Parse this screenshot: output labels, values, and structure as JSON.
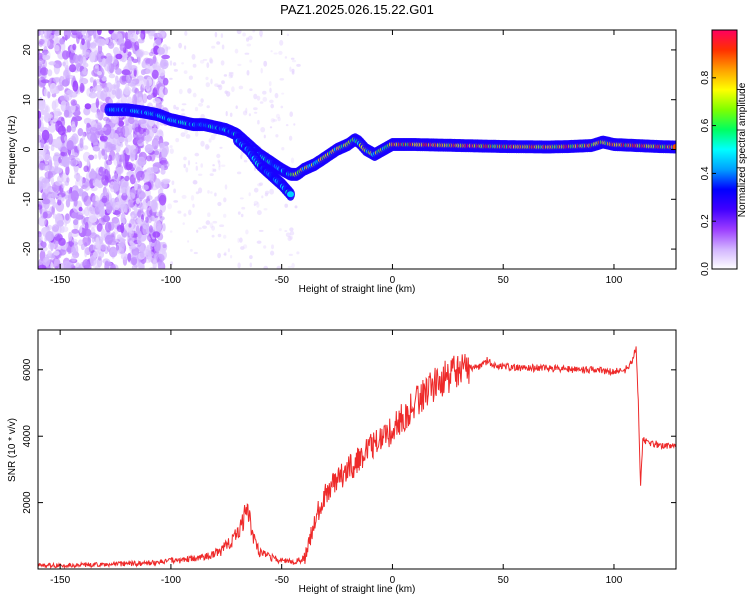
{
  "title": "PAZ1.2025.026.15.22.G01",
  "chart_data": [
    {
      "type": "heatmap",
      "id": "spectrogram",
      "xlabel": "Height of straight line (km)",
      "ylabel": "Frequency (Hz)",
      "xlim": [
        -160,
        128
      ],
      "ylim": [
        -24,
        24
      ],
      "xticks": [
        -150,
        -100,
        -50,
        0,
        50,
        100
      ],
      "yticks": [
        20,
        10,
        0,
        -10,
        -20
      ],
      "grid": false,
      "ridge": {
        "x": [
          -128,
          -120,
          -112,
          -106,
          -100,
          -95,
          -90,
          -85,
          -80,
          -75,
          -70,
          -65,
          -60,
          -55,
          -50,
          -46,
          -43,
          -40,
          -35,
          -30,
          -25,
          -20,
          -17,
          -15,
          -12,
          -8,
          -4,
          0,
          10,
          30,
          50,
          70,
          80,
          90,
          95,
          100,
          110,
          120,
          128
        ],
        "y": [
          8,
          8,
          7.5,
          7,
          6,
          5.5,
          5,
          5,
          4.5,
          4,
          3,
          1,
          -1,
          -2.5,
          -4,
          -5,
          -5,
          -4,
          -3,
          -1.5,
          0,
          1,
          2,
          1.5,
          0,
          -1,
          0,
          1,
          1,
          0.8,
          0.6,
          0.5,
          0.6,
          0.8,
          1.5,
          1,
          0.8,
          0.6,
          0.5
        ]
      },
      "branch": {
        "x": [
          -70,
          -65,
          -60,
          -55,
          -50,
          -46
        ],
        "y": [
          2,
          0,
          -3,
          -5,
          -7,
          -9
        ]
      },
      "colorbar": {
        "label": "Normalized spectral amplitude",
        "ticks": [
          "0.0",
          "0.2",
          "0.4",
          "0.6",
          "0.8"
        ],
        "range": [
          0,
          1
        ],
        "colors": [
          "#ffffff",
          "#d2b4ff",
          "#9b3cff",
          "#4000ff",
          "#0000ff",
          "#00a0ff",
          "#00ffff",
          "#00ff60",
          "#7fff00",
          "#ffff00",
          "#ffa000",
          "#ff3000",
          "#ff0060"
        ]
      }
    },
    {
      "type": "line",
      "id": "snr",
      "xlabel": "Height of straight line (km)",
      "ylabel": "SNR (10 * v/v)",
      "xlim": [
        -160,
        128
      ],
      "ylim": [
        0,
        7200
      ],
      "xticks": [
        -150,
        -100,
        -50,
        0,
        50,
        100
      ],
      "yticks": [
        2000,
        4000,
        6000
      ],
      "grid": false,
      "line_color": "#ee2a2a",
      "series": [
        {
          "x": [
            -160,
            -140,
            -120,
            -105,
            -100,
            -90,
            -85,
            -78,
            -72,
            -68,
            -66,
            -64,
            -62,
            -60,
            -55,
            -50,
            -45,
            -40,
            -38,
            -35,
            -32,
            -30,
            -25,
            -20,
            -15,
            -10,
            -5,
            0,
            5,
            10,
            15,
            20,
            25,
            30,
            35,
            40,
            43,
            45,
            50,
            60,
            70,
            80,
            90,
            100,
            105,
            108,
            110,
            111,
            112,
            113,
            115,
            120,
            128
          ],
          "y": [
            100,
            120,
            150,
            200,
            250,
            300,
            350,
            500,
            900,
            1300,
            2000,
            1300,
            800,
            500,
            350,
            250,
            200,
            300,
            700,
            1500,
            2000,
            2300,
            2700,
            3000,
            3300,
            3700,
            3900,
            4200,
            4600,
            5000,
            5300,
            5600,
            5800,
            5950,
            6050,
            6100,
            6300,
            6100,
            6100,
            6050,
            6050,
            6000,
            6000,
            5950,
            6000,
            6200,
            6700,
            5000,
            2500,
            3900,
            3800,
            3750,
            3700
          ]
        }
      ]
    }
  ]
}
